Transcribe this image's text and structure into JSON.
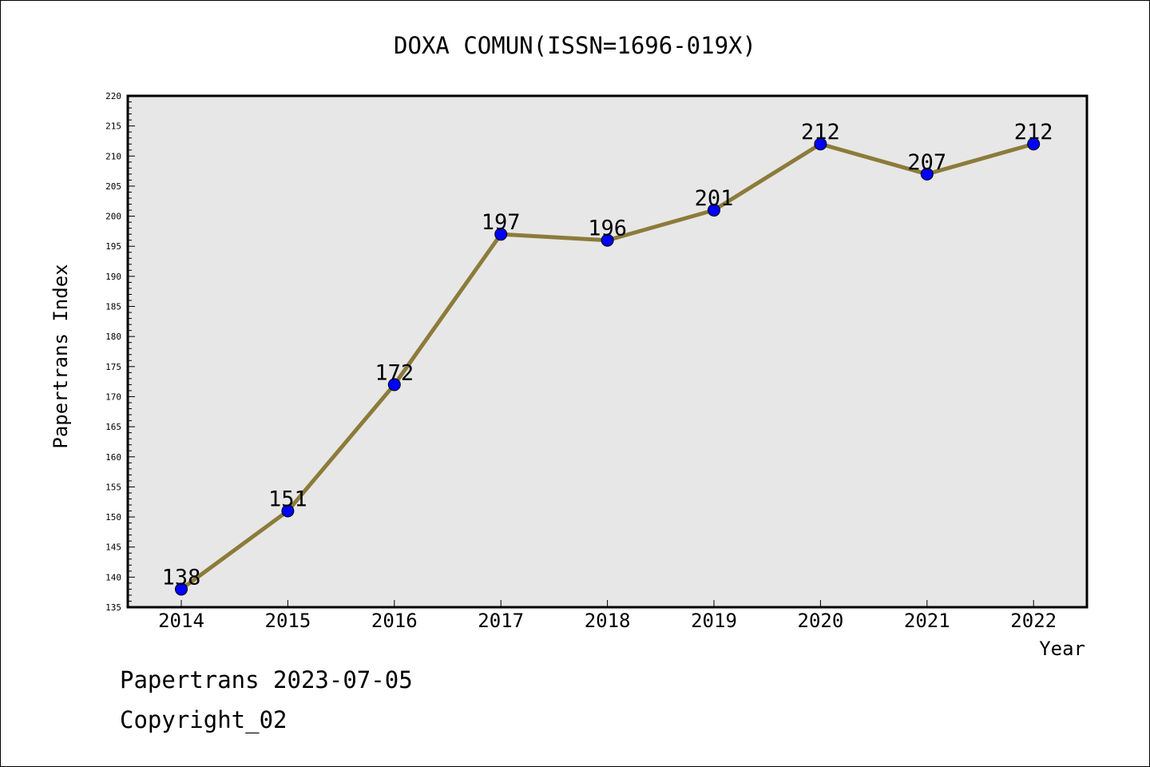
{
  "chart_data": {
    "type": "line",
    "title": "DOXA COMUN(ISSN=1696-019X)",
    "xlabel": "Year",
    "ylabel": "Papertrans Index",
    "categories": [
      "2014",
      "2015",
      "2016",
      "2017",
      "2018",
      "2019",
      "2020",
      "2021",
      "2022"
    ],
    "series": [
      {
        "values": [
          138,
          151,
          172,
          197,
          196,
          201,
          212,
          207,
          212
        ]
      }
    ],
    "ylim": [
      135,
      220
    ],
    "ytick_step": 5,
    "grid": false,
    "legend": "none",
    "colors": {
      "line": "#8c7b3a",
      "marker": "#0000ff",
      "plot_bg": "#e7e7e7"
    }
  },
  "footer": {
    "line1": "Papertrans 2023-07-05",
    "line2": "Copyright_02"
  }
}
